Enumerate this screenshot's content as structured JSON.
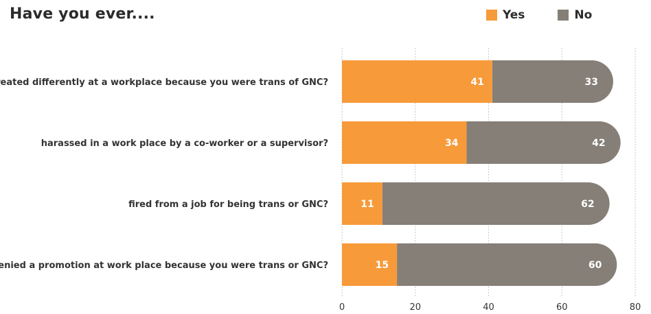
{
  "chart_data": {
    "type": "bar",
    "orientation": "horizontal",
    "stacked": true,
    "title": "Have you ever....",
    "categories": [
      "treated differently at a workplace because you were trans of GNC?",
      "harassed in a work place by a co-worker or a supervisor?",
      "fired from a job for being trans or GNC?",
      "denied a promotion at work place because you were trans or GNC?"
    ],
    "series": [
      {
        "name": "Yes",
        "color": "#F79A3A",
        "values": [
          41,
          34,
          11,
          15
        ]
      },
      {
        "name": "No",
        "color": "#857F77",
        "values": [
          33,
          42,
          62,
          60
        ]
      }
    ],
    "xlim": [
      0,
      80
    ],
    "xticks": [
      "0",
      "20",
      "40",
      "60",
      "80"
    ],
    "grid": "vertical-dashed",
    "legend": "top-right",
    "xlabel": "",
    "ylabel": ""
  }
}
